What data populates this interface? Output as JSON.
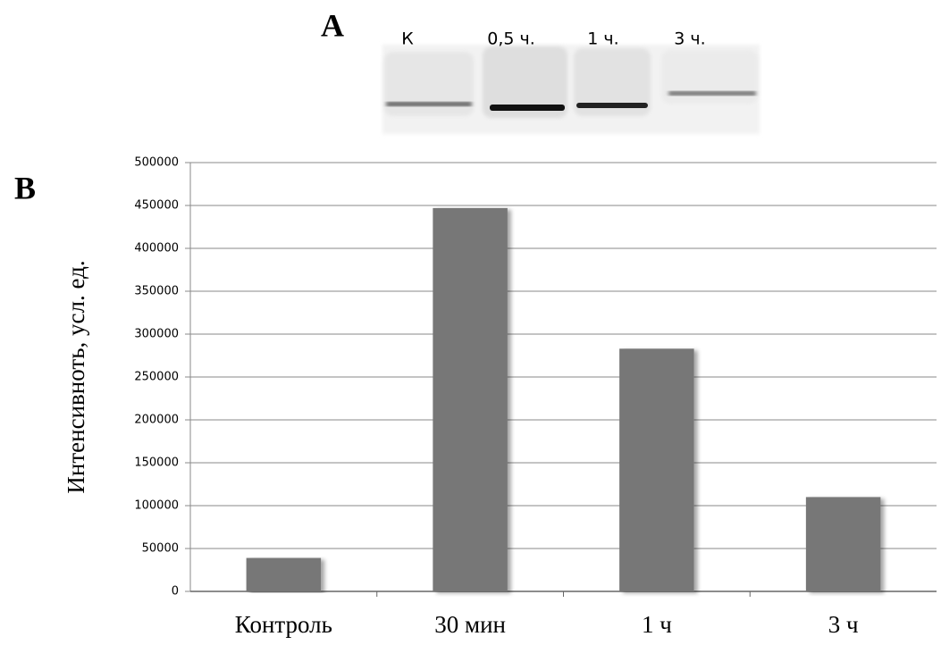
{
  "figure": {
    "panel_a_label": "A",
    "panel_b_label": "B",
    "lanes": [
      "К",
      "0,5 ч.",
      "1 ч.",
      "3 ч."
    ]
  },
  "chart_data": {
    "type": "bar",
    "y_label": "Интенсивноть, усл. ед.",
    "categories": [
      "Контроль",
      "30 мин",
      "1 ч",
      "3 ч"
    ],
    "values": [
      39000,
      447000,
      283000,
      110000
    ],
    "color": "#777777",
    "ylim": [
      0,
      500000
    ],
    "yticks": [
      0,
      50000,
      100000,
      150000,
      200000,
      250000,
      300000,
      350000,
      400000,
      450000,
      500000
    ],
    "grid": true
  }
}
